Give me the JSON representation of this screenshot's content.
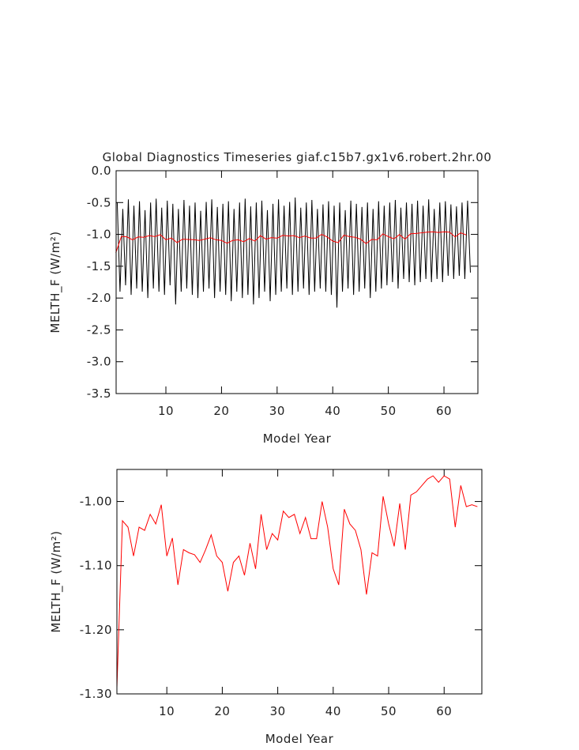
{
  "chart_data": [
    {
      "type": "line",
      "title": "Global Diagnostics Timeseries giaf.c15b7.gx1v6.robert.2hr.00",
      "x_label": "Model Year",
      "y_label": "MELTH_F (W/m²)",
      "xlim": [
        1.05,
        66.1
      ],
      "xticks": [
        10,
        20,
        30,
        40,
        50,
        60
      ],
      "ylim": [
        -3.5,
        0.0
      ],
      "yticks": [
        {
          "value": -3.5,
          "label": "-3.5"
        },
        {
          "value": -3.0,
          "label": "-3.0"
        },
        {
          "value": -2.5,
          "label": "-2.5"
        },
        {
          "value": -2.0,
          "label": "-2.0"
        },
        {
          "value": -1.5,
          "label": "-1.5"
        },
        {
          "value": -1.0,
          "label": "-1.0"
        },
        {
          "value": -0.5,
          "label": "-0.5"
        },
        {
          "value": 0.0,
          "label": "0.0"
        }
      ],
      "series": [
        {
          "color": "#000000",
          "x": [
            1.25,
            1.75,
            2.25,
            2.75,
            3.25,
            3.75,
            4.25,
            4.75,
            5.25,
            5.75,
            6.25,
            6.75,
            7.25,
            7.75,
            8.25,
            8.75,
            9.25,
            9.75,
            10.25,
            10.75,
            11.25,
            11.75,
            12.25,
            12.75,
            13.25,
            13.75,
            14.25,
            14.75,
            15.25,
            15.75,
            16.25,
            16.75,
            17.25,
            17.75,
            18.25,
            18.75,
            19.25,
            19.75,
            20.25,
            20.75,
            21.25,
            21.75,
            22.25,
            22.75,
            23.25,
            23.75,
            24.25,
            24.75,
            25.25,
            25.75,
            26.25,
            26.75,
            27.25,
            27.75,
            28.25,
            28.75,
            29.25,
            29.75,
            30.25,
            30.75,
            31.25,
            31.75,
            32.25,
            32.75,
            33.25,
            33.75,
            34.25,
            34.75,
            35.25,
            35.75,
            36.25,
            36.75,
            37.25,
            37.75,
            38.25,
            38.75,
            39.25,
            39.75,
            40.25,
            40.75,
            41.25,
            41.75,
            42.25,
            42.75,
            43.25,
            43.75,
            44.25,
            44.75,
            45.25,
            45.75,
            46.25,
            46.75,
            47.25,
            47.75,
            48.25,
            48.75,
            49.25,
            49.75,
            50.25,
            50.75,
            51.25,
            51.75,
            52.25,
            52.75,
            53.25,
            53.75,
            54.25,
            54.75,
            55.25,
            55.75,
            56.25,
            56.75,
            57.25,
            57.75,
            58.25,
            58.75,
            59.25,
            59.75,
            60.25,
            60.75,
            61.25,
            61.75,
            62.25,
            62.75,
            63.25,
            63.75,
            64.25,
            64.75
          ],
          "values": [
            -0.5,
            -1.9,
            -0.6,
            -1.8,
            -0.45,
            -1.95,
            -0.55,
            -1.85,
            -0.48,
            -1.9,
            -0.62,
            -2.0,
            -0.5,
            -1.85,
            -0.44,
            -1.9,
            -0.58,
            -1.95,
            -0.47,
            -1.8,
            -0.52,
            -2.1,
            -0.6,
            -1.9,
            -0.46,
            -1.85,
            -0.55,
            -1.95,
            -0.5,
            -2.0,
            -0.63,
            -1.9,
            -0.49,
            -1.85,
            -0.45,
            -2.0,
            -0.57,
            -1.9,
            -0.52,
            -1.95,
            -0.48,
            -2.05,
            -0.6,
            -1.9,
            -0.5,
            -2.0,
            -0.44,
            -1.95,
            -0.56,
            -2.1,
            -0.5,
            -2.0,
            -0.47,
            -1.9,
            -0.62,
            -2.05,
            -0.52,
            -1.95,
            -0.45,
            -1.9,
            -0.55,
            -1.85,
            -0.49,
            -1.95,
            -0.42,
            -1.9,
            -0.58,
            -1.85,
            -0.5,
            -1.95,
            -0.46,
            -1.9,
            -0.6,
            -1.85,
            -0.53,
            -1.9,
            -0.48,
            -1.95,
            -0.55,
            -2.15,
            -0.5,
            -1.9,
            -0.62,
            -1.85,
            -0.47,
            -1.95,
            -0.52,
            -1.9,
            -0.57,
            -1.85,
            -0.5,
            -2.0,
            -0.6,
            -1.9,
            -0.48,
            -1.85,
            -0.55,
            -1.8,
            -0.5,
            -1.75,
            -0.46,
            -1.85,
            -0.58,
            -1.7,
            -0.5,
            -1.75,
            -0.52,
            -1.8,
            -0.47,
            -1.75,
            -0.55,
            -1.7,
            -0.45,
            -1.75,
            -0.6,
            -1.7,
            -0.5,
            -1.75,
            -0.48,
            -1.65,
            -0.53,
            -1.7,
            -0.56,
            -1.65,
            -0.5,
            -1.7,
            -0.47,
            -1.6
          ]
        },
        {
          "color": "#ff0000",
          "x": [
            1,
            2,
            3,
            4,
            5,
            6,
            7,
            8,
            9,
            10,
            11,
            12,
            13,
            14,
            15,
            16,
            17,
            18,
            19,
            20,
            21,
            22,
            23,
            24,
            25,
            26,
            27,
            28,
            29,
            30,
            31,
            32,
            33,
            34,
            35,
            36,
            37,
            38,
            39,
            40,
            41,
            42,
            43,
            44,
            45,
            46,
            47,
            48,
            49,
            50,
            51,
            52,
            53,
            54,
            55,
            56,
            57,
            58,
            59,
            60,
            61,
            62,
            63,
            64
          ],
          "values": [
            -1.29,
            -1.03,
            -1.04,
            -1.085,
            -1.04,
            -1.045,
            -1.02,
            -1.035,
            -1.005,
            -1.085,
            -1.057,
            -1.13,
            -1.075,
            -1.08,
            -1.083,
            -1.095,
            -1.075,
            -1.052,
            -1.085,
            -1.095,
            -1.14,
            -1.095,
            -1.085,
            -1.115,
            -1.065,
            -1.105,
            -1.02,
            -1.075,
            -1.05,
            -1.06,
            -1.015,
            -1.025,
            -1.02,
            -1.05,
            -1.025,
            -1.058,
            -1.058,
            -1.0,
            -1.04,
            -1.105,
            -1.13,
            -1.012,
            -1.035,
            -1.045,
            -1.075,
            -1.145,
            -1.08,
            -1.085,
            -0.992,
            -1.035,
            -1.07,
            -1.003,
            -1.075,
            -0.99,
            -0.985,
            -0.975,
            -0.965,
            -0.96,
            -0.97,
            -0.96,
            -0.965,
            -1.04,
            -0.975,
            -1.008
          ]
        }
      ]
    },
    {
      "type": "line",
      "x_label": "Model Year",
      "y_label": "MELTH_F (W/m²)",
      "xlim": [
        1,
        66.8
      ],
      "xticks": [
        10,
        20,
        30,
        40,
        50,
        60
      ],
      "ylim": [
        -1.3,
        -0.95
      ],
      "yticks": [
        {
          "value": -1.3,
          "label": "-1.30"
        },
        {
          "value": -1.2,
          "label": "-1.20"
        },
        {
          "value": -1.1,
          "label": "-1.10"
        },
        {
          "value": -1.0,
          "label": "-1.00"
        }
      ],
      "series": [
        {
          "color": "#ff0000",
          "x": [
            1,
            2,
            3,
            4,
            5,
            6,
            7,
            8,
            9,
            10,
            11,
            12,
            13,
            14,
            15,
            16,
            17,
            18,
            19,
            20,
            21,
            22,
            23,
            24,
            25,
            26,
            27,
            28,
            29,
            30,
            31,
            32,
            33,
            34,
            35,
            36,
            37,
            38,
            39,
            40,
            41,
            42,
            43,
            44,
            45,
            46,
            47,
            48,
            49,
            50,
            51,
            52,
            53,
            54,
            55,
            56,
            57,
            58,
            59,
            60,
            61,
            62,
            63,
            64,
            65,
            66
          ],
          "values": [
            -1.29,
            -1.03,
            -1.04,
            -1.085,
            -1.04,
            -1.045,
            -1.02,
            -1.035,
            -1.005,
            -1.085,
            -1.057,
            -1.13,
            -1.075,
            -1.08,
            -1.083,
            -1.095,
            -1.075,
            -1.052,
            -1.085,
            -1.095,
            -1.14,
            -1.095,
            -1.085,
            -1.115,
            -1.065,
            -1.105,
            -1.02,
            -1.075,
            -1.05,
            -1.06,
            -1.015,
            -1.025,
            -1.02,
            -1.05,
            -1.025,
            -1.058,
            -1.058,
            -1.0,
            -1.04,
            -1.105,
            -1.13,
            -1.012,
            -1.035,
            -1.045,
            -1.075,
            -1.145,
            -1.08,
            -1.085,
            -0.992,
            -1.035,
            -1.07,
            -1.003,
            -1.075,
            -0.99,
            -0.985,
            -0.975,
            -0.965,
            -0.96,
            -0.97,
            -0.96,
            -0.965,
            -1.04,
            -0.975,
            -1.008,
            -1.005,
            -1.008
          ]
        }
      ]
    }
  ]
}
